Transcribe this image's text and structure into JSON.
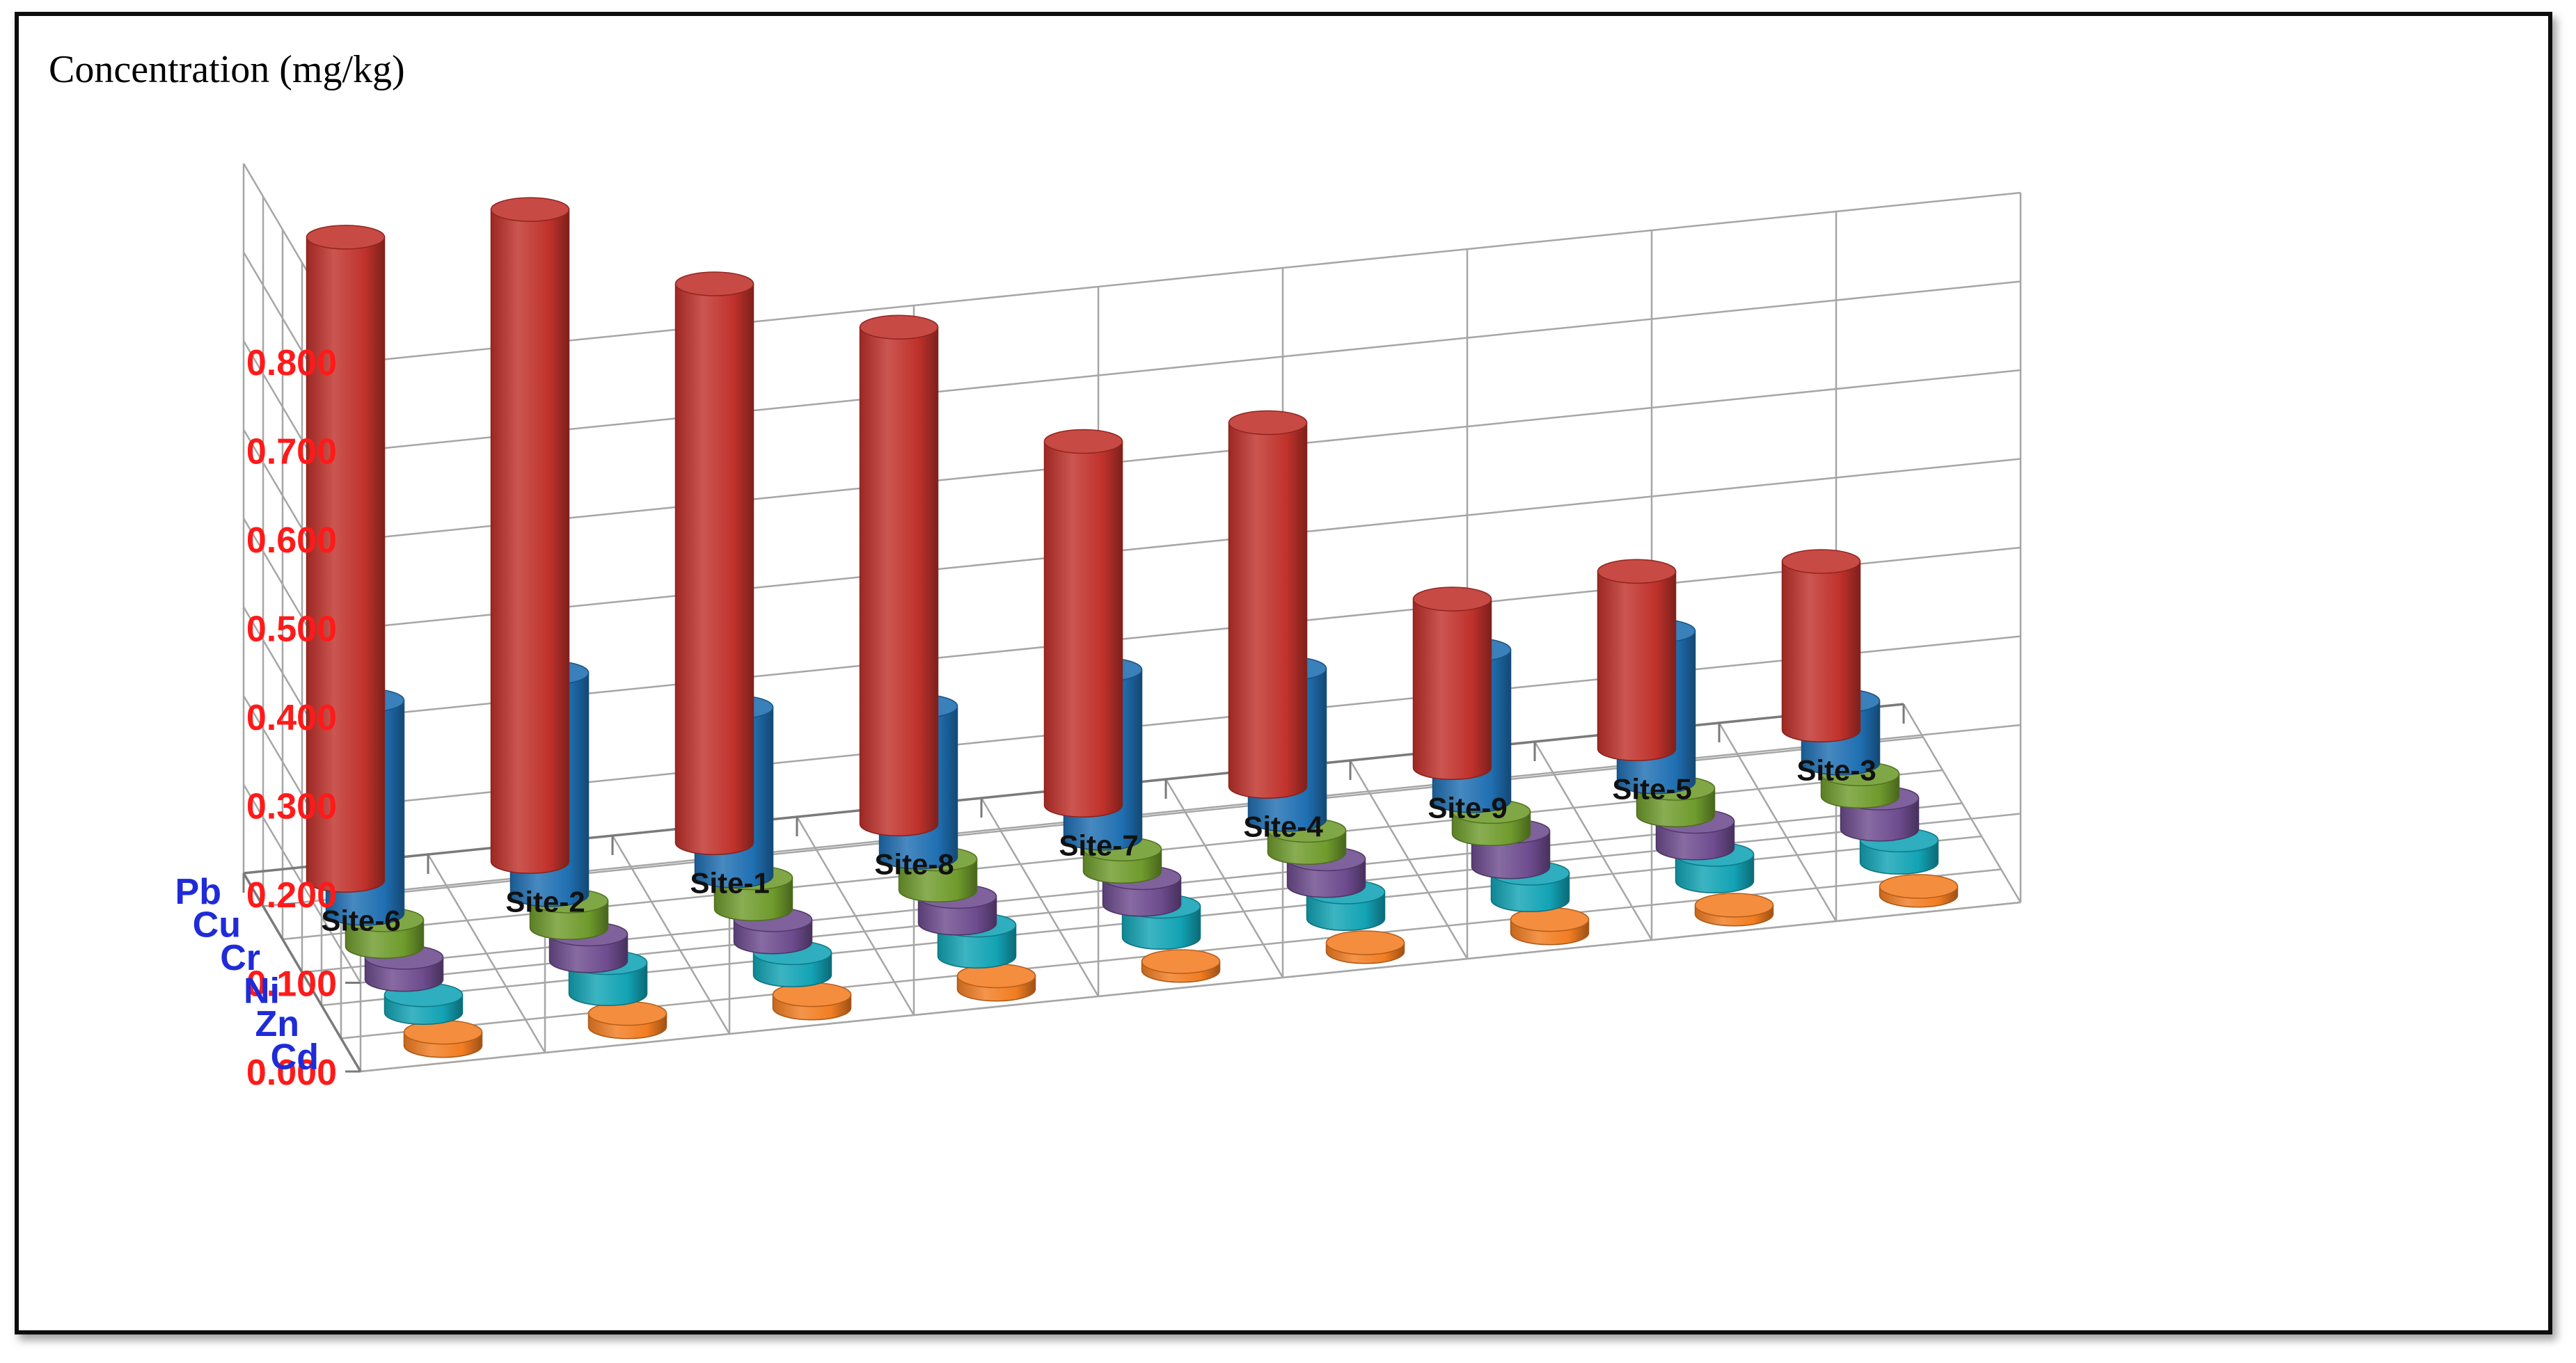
{
  "chart_data": {
    "type": "bar",
    "subtype": "3d-cylinder",
    "ylabel": "Concentration (mg/kg)",
    "ylim": [
      0,
      0.8
    ],
    "yticks": [
      "0.000",
      "0.100",
      "0.200",
      "0.300",
      "0.400",
      "0.500",
      "0.600",
      "0.700",
      "0.800"
    ],
    "categories": [
      "Site-6",
      "Site-2",
      "Site-1",
      "Site-8",
      "Site-7",
      "Site-4",
      "Site-9",
      "Site-5",
      "Site-3"
    ],
    "grid": true,
    "series": [
      {
        "name": "Pb",
        "color": "#c0312b",
        "values": [
          0.725,
          0.735,
          0.63,
          0.56,
          0.41,
          0.41,
          0.19,
          0.2,
          0.19
        ]
      },
      {
        "name": "Cu",
        "color": "#1f6fb2",
        "values": [
          0.24,
          0.25,
          0.19,
          0.17,
          0.19,
          0.17,
          0.17,
          0.17,
          0.07
        ]
      },
      {
        "name": "Cr",
        "color": "#6f9b2c",
        "values": [
          0.03,
          0.03,
          0.035,
          0.035,
          0.025,
          0.025,
          0.025,
          0.03,
          0.025
        ]
      },
      {
        "name": "Ni",
        "color": "#6d4b8e",
        "values": [
          0.025,
          0.03,
          0.025,
          0.03,
          0.03,
          0.03,
          0.04,
          0.03,
          0.035
        ]
      },
      {
        "name": "Zn",
        "color": "#12a3b5",
        "values": [
          0.02,
          0.035,
          0.025,
          0.035,
          0.035,
          0.03,
          0.03,
          0.03,
          0.025
        ]
      },
      {
        "name": "Cd",
        "color": "#f27d22",
        "values": [
          0.015,
          0.015,
          0.015,
          0.015,
          0.01,
          0.01,
          0.015,
          0.01,
          0.01
        ]
      }
    ]
  }
}
